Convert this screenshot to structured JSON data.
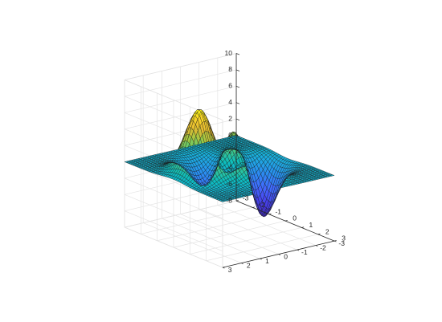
{
  "chart_data": {
    "type": "surface",
    "function": "peaks",
    "title": "",
    "xlabel": "",
    "ylabel": "",
    "zlabel": "",
    "grid": true,
    "colormap": "parula",
    "x_range": [
      -3,
      3
    ],
    "y_range": [
      -3,
      3
    ],
    "zlim": [
      -8,
      10
    ],
    "mesh_size": 49,
    "x_ticks": [
      "-3",
      "-2",
      "-1",
      "0",
      "1",
      "2",
      "3"
    ],
    "y_ticks": [
      "-3",
      "-2",
      "-1",
      "0",
      "1",
      "2",
      "3"
    ],
    "z_ticks": [
      "-8",
      "-6",
      "-4",
      "-2",
      "0",
      "2",
      "4",
      "6",
      "8",
      "10"
    ]
  }
}
